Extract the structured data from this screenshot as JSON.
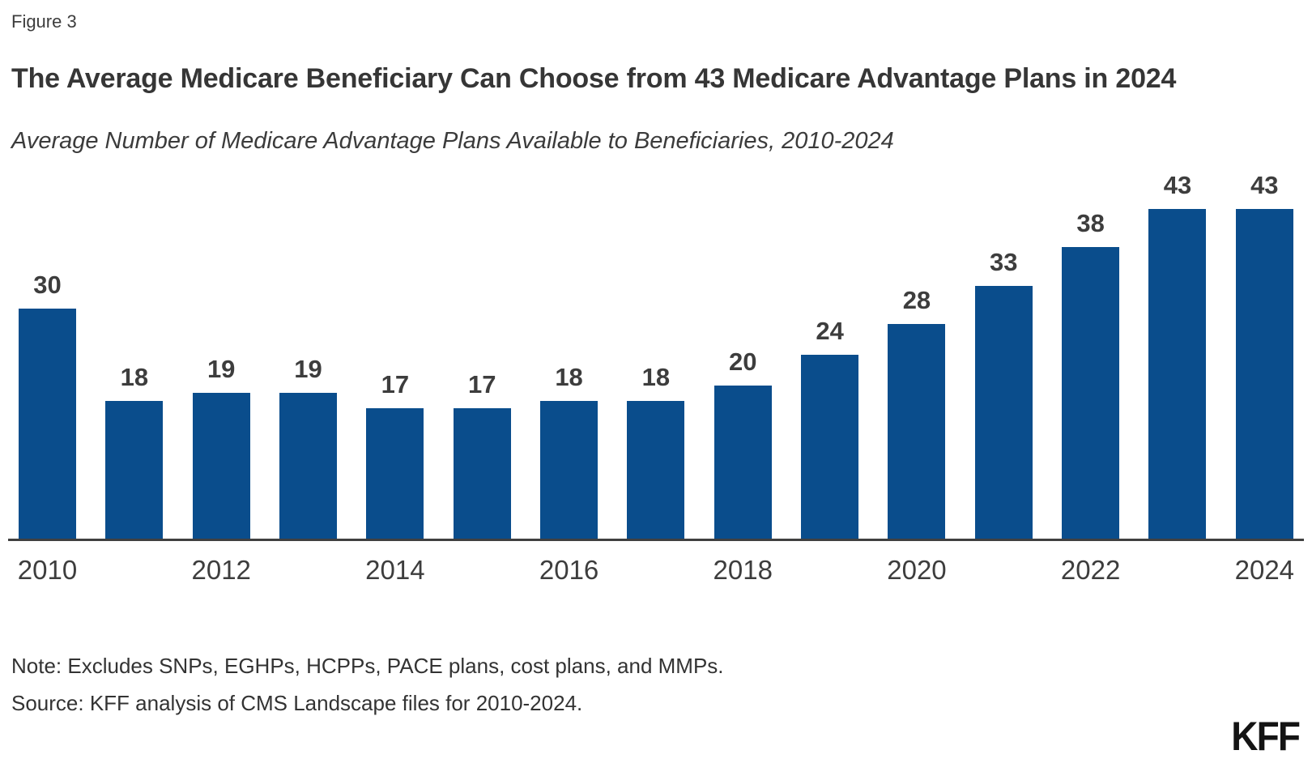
{
  "figure_label": "Figure 3",
  "title": "The Average Medicare Beneficiary Can Choose from 43 Medicare Advantage Plans in 2024",
  "subtitle": "Average Number of Medicare Advantage Plans Available to Beneficiaries, 2010-2024",
  "note": "Note: Excludes SNPs, EGHPs, HCPPs, PACE plans, cost plans, and MMPs.",
  "source": "Source: KFF analysis of CMS Landscape files for 2010-2024.",
  "logo_text": "KFF",
  "colors": {
    "bar": "#0a4d8c",
    "axis": "#404040",
    "text": "#333333",
    "value_label": "#3d3d3d"
  },
  "chart_data": {
    "type": "bar",
    "categories": [
      "2010",
      "2011",
      "2012",
      "2013",
      "2014",
      "2015",
      "2016",
      "2017",
      "2018",
      "2019",
      "2020",
      "2021",
      "2022",
      "2023",
      "2024"
    ],
    "values": [
      30,
      18,
      19,
      19,
      17,
      17,
      18,
      18,
      20,
      24,
      28,
      33,
      38,
      43,
      43
    ],
    "x_tick_labels": [
      "2010",
      "2012",
      "2014",
      "2016",
      "2018",
      "2020",
      "2022",
      "2024"
    ],
    "title": "The Average Medicare Beneficiary Can Choose from 43 Medicare Advantage Plans in 2024",
    "subtitle": "Average Number of Medicare Advantage Plans Available to Beneficiaries, 2010-2024",
    "xlabel": "",
    "ylabel": "",
    "ylim": [
      0,
      45
    ],
    "grid": false,
    "legend": "none",
    "bar_color": "#0a4d8c",
    "data_labels": true
  }
}
